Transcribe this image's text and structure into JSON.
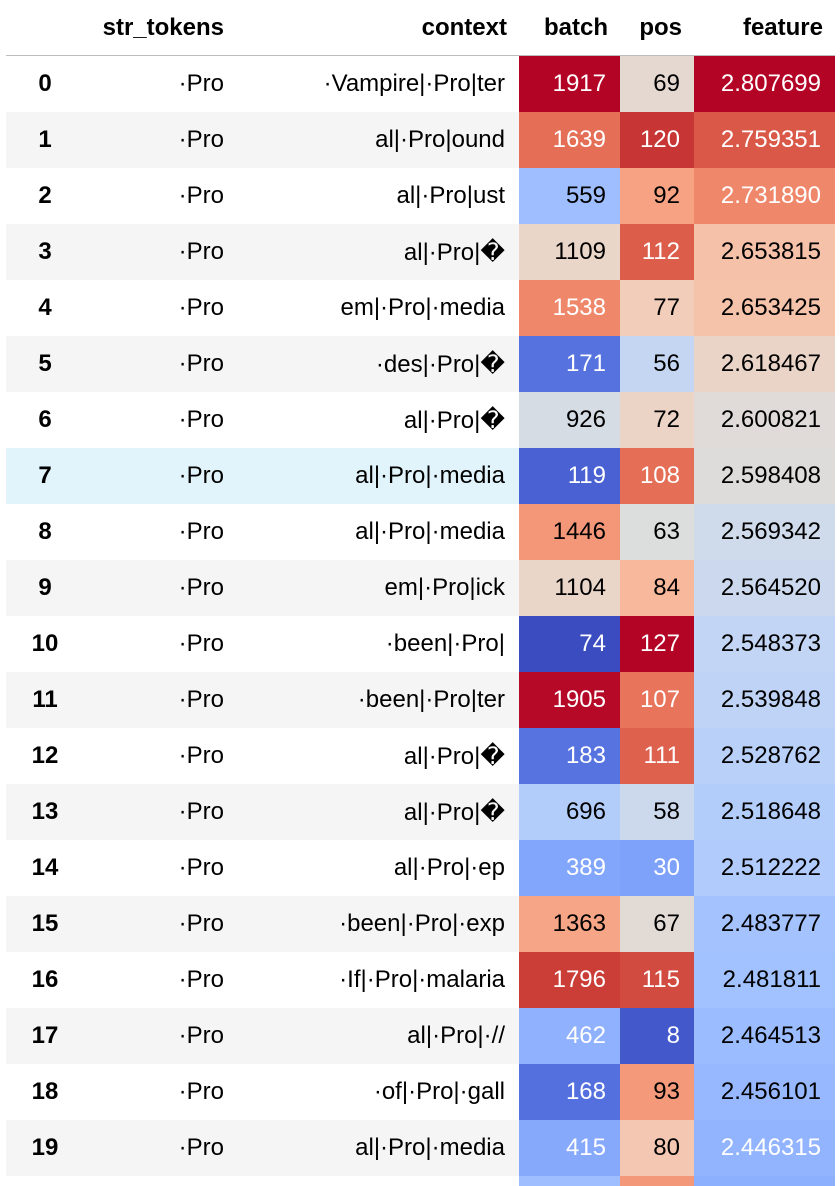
{
  "table": {
    "headers": {
      "index": "",
      "str_tokens": "str_tokens",
      "context": "context",
      "batch": "batch",
      "pos": "pos",
      "feature": "feature"
    },
    "highlighted_row": 7,
    "rows": [
      {
        "index": "0",
        "str_tokens": "·Pro",
        "context": "·Vampire|·Pro|ter",
        "batch": "1917",
        "pos": "69",
        "feature": "2.807699",
        "batch_bg": "#b40426",
        "batch_fg": "#ffffff",
        "pos_bg": "#e5d8d1",
        "pos_fg": "#000000",
        "feature_bg": "#b40426",
        "feature_fg": "#ffffff"
      },
      {
        "index": "1",
        "str_tokens": "·Pro",
        "context": "al|·Pro|ound",
        "batch": "1639",
        "pos": "120",
        "feature": "2.759351",
        "batch_bg": "#e46e56",
        "batch_fg": "#ffffff",
        "pos_bg": "#c73635",
        "pos_fg": "#ffffff",
        "feature_bg": "#d95847",
        "feature_fg": "#ffffff"
      },
      {
        "index": "2",
        "str_tokens": "·Pro",
        "context": "al|·Pro|ust",
        "batch": "559",
        "pos": "92",
        "feature": "2.731890",
        "batch_bg": "#9ebeff",
        "batch_fg": "#000000",
        "pos_bg": "#f6a283",
        "pos_fg": "#000000",
        "feature_bg": "#ef886b",
        "feature_fg": "#ffffff"
      },
      {
        "index": "3",
        "str_tokens": "·Pro",
        "context": "al|·Pro|�",
        "batch": "1109",
        "pos": "112",
        "feature": "2.653815",
        "batch_bg": "#ead5c9",
        "batch_fg": "#000000",
        "pos_bg": "#dc5d4a",
        "pos_fg": "#ffffff",
        "feature_bg": "#f5c1a9",
        "feature_fg": "#000000"
      },
      {
        "index": "4",
        "str_tokens": "·Pro",
        "context": "em|·Pro|·media",
        "batch": "1538",
        "pos": "77",
        "feature": "2.653425",
        "batch_bg": "#ef886b",
        "batch_fg": "#ffffff",
        "pos_bg": "#f1cdba",
        "pos_fg": "#000000",
        "feature_bg": "#f5c2aa",
        "feature_fg": "#000000"
      },
      {
        "index": "5",
        "str_tokens": "·Pro",
        "context": "·des|·Pro|�",
        "batch": "171",
        "pos": "56",
        "feature": "2.618467",
        "batch_bg": "#5572df",
        "batch_fg": "#ffffff",
        "pos_bg": "#c5d6f2",
        "pos_fg": "#000000",
        "feature_bg": "#ead4c8",
        "feature_fg": "#000000"
      },
      {
        "index": "6",
        "str_tokens": "·Pro",
        "context": "al|·Pro|�",
        "batch": "926",
        "pos": "72",
        "feature": "2.600821",
        "batch_bg": "#d6dce4",
        "batch_fg": "#000000",
        "pos_bg": "#ebd3c6",
        "pos_fg": "#000000",
        "feature_bg": "#e0dbd8",
        "feature_fg": "#000000"
      },
      {
        "index": "7",
        "str_tokens": "·Pro",
        "context": "al|·Pro|·media",
        "batch": "119",
        "pos": "108",
        "feature": "2.598408",
        "batch_bg": "#4961d2",
        "batch_fg": "#ffffff",
        "pos_bg": "#e46e56",
        "pos_fg": "#ffffff",
        "feature_bg": "#dedcdb",
        "feature_fg": "#000000"
      },
      {
        "index": "8",
        "str_tokens": "·Pro",
        "context": "al|·Pro|·media",
        "batch": "1446",
        "pos": "63",
        "feature": "2.569342",
        "batch_bg": "#f39778",
        "batch_fg": "#000000",
        "pos_bg": "#dcdddd",
        "pos_fg": "#000000",
        "feature_bg": "#cfdaea",
        "feature_fg": "#000000"
      },
      {
        "index": "9",
        "str_tokens": "·Pro",
        "context": "em|·Pro|ick",
        "batch": "1104",
        "pos": "84",
        "feature": "2.564520",
        "batch_bg": "#ead5c9",
        "batch_fg": "#000000",
        "pos_bg": "#f7b89c",
        "pos_fg": "#000000",
        "feature_bg": "#cbd8ee",
        "feature_fg": "#000000"
      },
      {
        "index": "10",
        "str_tokens": "·Pro",
        "context": "·been|·Pro|",
        "batch": "74",
        "pos": "127",
        "feature": "2.548373",
        "batch_bg": "#3b4cc0",
        "batch_fg": "#ffffff",
        "pos_bg": "#b40426",
        "pos_fg": "#ffffff",
        "feature_bg": "#c3d5f4",
        "feature_fg": "#000000"
      },
      {
        "index": "11",
        "str_tokens": "·Pro",
        "context": "·been|·Pro|ter",
        "batch": "1905",
        "pos": "107",
        "feature": "2.539848",
        "batch_bg": "#b50927",
        "batch_fg": "#ffffff",
        "pos_bg": "#e7745b",
        "pos_fg": "#ffffff",
        "feature_bg": "#bfd3f6",
        "feature_fg": "#000000"
      },
      {
        "index": "12",
        "str_tokens": "·Pro",
        "context": "al|·Pro|�",
        "batch": "183",
        "pos": "111",
        "feature": "2.528762",
        "batch_bg": "#5673e0",
        "batch_fg": "#ffffff",
        "pos_bg": "#de614d",
        "pos_fg": "#ffffff",
        "feature_bg": "#b9d0f9",
        "feature_fg": "#000000"
      },
      {
        "index": "13",
        "str_tokens": "·Pro",
        "context": "al|·Pro|�",
        "batch": "696",
        "pos": "58",
        "feature": "2.518648",
        "batch_bg": "#b3cdfb",
        "batch_fg": "#000000",
        "pos_bg": "#ccd9ed",
        "pos_fg": "#000000",
        "feature_bg": "#b3cdfb",
        "feature_fg": "#000000"
      },
      {
        "index": "14",
        "str_tokens": "·Pro",
        "context": "al|·Pro|·ep",
        "batch": "389",
        "pos": "30",
        "feature": "2.512222",
        "batch_bg": "#82a6fb",
        "batch_fg": "#ffffff",
        "pos_bg": "#7ea1fa",
        "pos_fg": "#ffffff",
        "feature_bg": "#b1cbfc",
        "feature_fg": "#000000"
      },
      {
        "index": "15",
        "str_tokens": "·Pro",
        "context": "·been|·Pro|·exp",
        "batch": "1363",
        "pos": "67",
        "feature": "2.483777",
        "batch_bg": "#f6a586",
        "batch_fg": "#000000",
        "pos_bg": "#e2dad5",
        "pos_fg": "#000000",
        "feature_bg": "#a3c2fe",
        "feature_fg": "#000000"
      },
      {
        "index": "16",
        "str_tokens": "·Pro",
        "context": "·If|·Pro|·malaria",
        "batch": "1796",
        "pos": "115",
        "feature": "2.481811",
        "batch_bg": "#cb3e38",
        "batch_fg": "#ffffff",
        "pos_bg": "#d24b40",
        "pos_fg": "#ffffff",
        "feature_bg": "#a2c1ff",
        "feature_fg": "#000000"
      },
      {
        "index": "17",
        "str_tokens": "·Pro",
        "context": "al|·Pro|·//",
        "batch": "462",
        "pos": "8",
        "feature": "2.464513",
        "batch_bg": "#8fb1fe",
        "batch_fg": "#ffffff",
        "pos_bg": "#4358cb",
        "pos_fg": "#ffffff",
        "feature_bg": "#9bbcff",
        "feature_fg": "#000000"
      },
      {
        "index": "18",
        "str_tokens": "·Pro",
        "context": "·of|·Pro|·gall",
        "batch": "168",
        "pos": "93",
        "feature": "2.456101",
        "batch_bg": "#5470de",
        "batch_fg": "#ffffff",
        "pos_bg": "#f49a7b",
        "pos_fg": "#000000",
        "feature_bg": "#97b8ff",
        "feature_fg": "#000000"
      },
      {
        "index": "19",
        "str_tokens": "·Pro",
        "context": "al|·Pro|·media",
        "batch": "415",
        "pos": "80",
        "feature": "2.446315",
        "batch_bg": "#86a9fc",
        "batch_fg": "#ffffff",
        "pos_bg": "#f3c7b1",
        "pos_fg": "#000000",
        "feature_bg": "#92b4fe",
        "feature_fg": "#ffffff"
      }
    ],
    "partial_row": {
      "batch_bg": "#9ebeff",
      "pos_bg": "#f4987a",
      "feature_bg": "#8caffe"
    }
  }
}
